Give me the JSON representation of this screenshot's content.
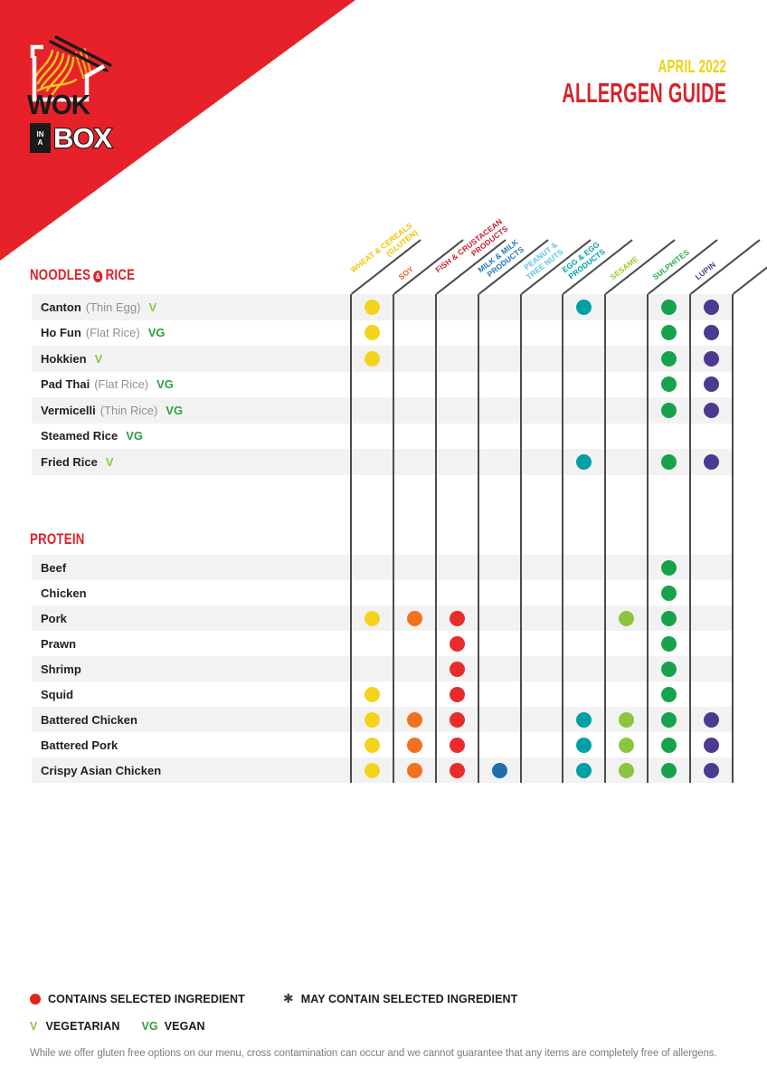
{
  "logo": {
    "wok": "WOK",
    "in_line1": "IN",
    "in_line2": "A",
    "box": "BOX"
  },
  "header": {
    "date": "APRIL 2022",
    "title": "ALLERGEN GUIDE"
  },
  "colors": {
    "corner_red": "#E62129",
    "heading_red": "#D8232A",
    "date_yellow": "#EDD20E",
    "legend_dot_red": "#E0251C"
  },
  "diet_colors": {
    "V": "#8CC63F",
    "VG": "#2F9E41"
  },
  "table_amp": "&",
  "columns": [
    {
      "id": "wheat",
      "lines": [
        "WHEAT & CEREALS",
        "(GLUTEN)"
      ],
      "color": "#EDC500",
      "dot": "#F4D41B"
    },
    {
      "id": "soy",
      "lines": [
        "SOY"
      ],
      "color": "#F15A25",
      "dot": "#F2711F"
    },
    {
      "id": "fish",
      "lines": [
        "FISH & CRUSTACEAN",
        "PRODUCTS"
      ],
      "color": "#C81E2E",
      "dot": "#EA2B2B"
    },
    {
      "id": "milk",
      "lines": [
        "MILK & MILK",
        "PRODUCTS"
      ],
      "color": "#1C75BC",
      "dot": "#1D6EAE"
    },
    {
      "id": "peanut",
      "lines": [
        "PEANUT &",
        "TREE NUTS"
      ],
      "color": "#5BC3EA",
      "dot": "#5BC3EA"
    },
    {
      "id": "egg",
      "lines": [
        "EGG & EGG",
        "PRODUCTS"
      ],
      "color": "#00A0A8",
      "dot": "#00A0A5"
    },
    {
      "id": "sesame",
      "lines": [
        "SESAME"
      ],
      "color": "#9ACA2F",
      "dot": "#8CC53F"
    },
    {
      "id": "sulphites",
      "lines": [
        "SULPHITES"
      ],
      "color": "#2BA94C",
      "dot": "#17A24B"
    },
    {
      "id": "lupin",
      "lines": [
        "LUPIN"
      ],
      "color": "#4B3C92",
      "dot": "#4C3A92"
    }
  ],
  "sections": [
    {
      "title_parts": [
        "NOODLES",
        "RICE"
      ],
      "rows": [
        {
          "name": "Canton",
          "note": "(Thin Egg)",
          "diet": "V",
          "allergens": [
            "wheat",
            "egg",
            "sulphites",
            "lupin"
          ]
        },
        {
          "name": "Ho Fun",
          "note": "(Flat Rice)",
          "diet": "VG",
          "allergens": [
            "wheat",
            "sulphites",
            "lupin"
          ]
        },
        {
          "name": "Hokkien",
          "note": "",
          "diet": "V",
          "allergens": [
            "wheat",
            "sulphites",
            "lupin"
          ]
        },
        {
          "name": "Pad Thai",
          "note": "(Flat Rice)",
          "diet": "VG",
          "allergens": [
            "sulphites",
            "lupin"
          ]
        },
        {
          "name": "Vermicelli",
          "note": "(Thin Rice)",
          "diet": "VG",
          "allergens": [
            "sulphites",
            "lupin"
          ]
        },
        {
          "name": "Steamed Rice",
          "note": "",
          "diet": "VG",
          "allergens": []
        },
        {
          "name": "Fried Rice",
          "note": "",
          "diet": "V",
          "allergens": [
            "egg",
            "sulphites",
            "lupin"
          ]
        }
      ]
    },
    {
      "title_parts": [
        "PROTEIN"
      ],
      "rows": [
        {
          "name": "Beef",
          "note": "",
          "diet": "",
          "allergens": [
            "sulphites"
          ]
        },
        {
          "name": "Chicken",
          "note": "",
          "diet": "",
          "allergens": [
            "sulphites"
          ]
        },
        {
          "name": "Pork",
          "note": "",
          "diet": "",
          "allergens": [
            "wheat",
            "soy",
            "fish",
            "sesame",
            "sulphites"
          ]
        },
        {
          "name": "Prawn",
          "note": "",
          "diet": "",
          "allergens": [
            "fish",
            "sulphites"
          ]
        },
        {
          "name": "Shrimp",
          "note": "",
          "diet": "",
          "allergens": [
            "fish",
            "sulphites"
          ]
        },
        {
          "name": "Squid",
          "note": "",
          "diet": "",
          "allergens": [
            "wheat",
            "fish",
            "sulphites"
          ]
        },
        {
          "name": "Battered Chicken",
          "note": "",
          "diet": "",
          "allergens": [
            "wheat",
            "soy",
            "fish",
            "egg",
            "sesame",
            "sulphites",
            "lupin"
          ]
        },
        {
          "name": "Battered Pork",
          "note": "",
          "diet": "",
          "allergens": [
            "wheat",
            "soy",
            "fish",
            "egg",
            "sesame",
            "sulphites",
            "lupin"
          ]
        },
        {
          "name": "Crispy Asian Chicken",
          "note": "",
          "diet": "",
          "allergens": [
            "wheat",
            "soy",
            "fish",
            "milk",
            "egg",
            "sesame",
            "sulphites",
            "lupin"
          ]
        }
      ]
    }
  ],
  "legend": {
    "contains": "CONTAINS SELECTED INGREDIENT",
    "may_symbol": "✱",
    "may_contain": "MAY CONTAIN SELECTED INGREDIENT",
    "vegetarian_symbol": "V",
    "vegetarian": "VEGETARIAN",
    "vegan_symbol": "VG",
    "vegan": "VEGAN"
  },
  "disclaimer": "While we offer gluten free options on our menu, cross contamination can occur and we cannot guarantee that any items are completely free of allergens."
}
